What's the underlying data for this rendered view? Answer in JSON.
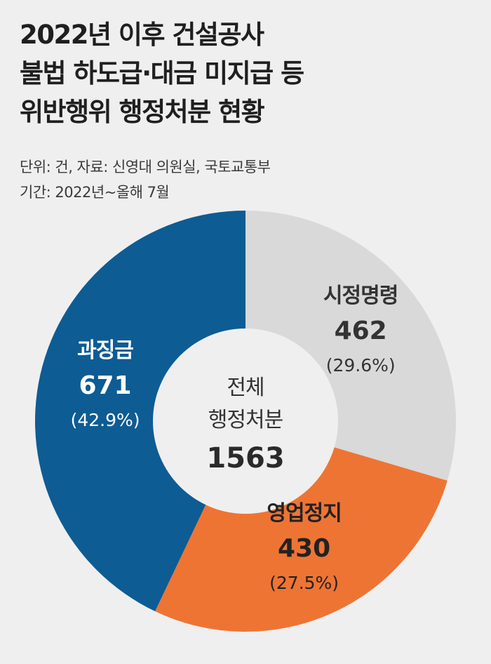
{
  "header": {
    "title_lines": [
      "2022년 이후 건설공사",
      "불법 하도급·대금 미지급 등",
      "위반행위 행정처분 현황"
    ],
    "unit_source": "단위: 건, 자료: 신영대 의원실, 국토교통부",
    "period": "기간: 2022년~올해 7월"
  },
  "center": {
    "line1": "전체",
    "line2": "행정처분",
    "total": "1563"
  },
  "chart_data": {
    "type": "pie",
    "donut": true,
    "total": 1563,
    "categories": [
      "시정명령",
      "영업정지",
      "과징금"
    ],
    "values": [
      462,
      430,
      671
    ],
    "value_labels": [
      "462",
      "430",
      "671"
    ],
    "percent_labels": [
      "(29.6%)",
      "(27.5%)",
      "(42.9%)"
    ],
    "colors": [
      "#d9d9d9",
      "#ee7434",
      "#0d5c94"
    ],
    "label_colors": [
      "#333333",
      "#222222",
      "#ffffff"
    ]
  }
}
